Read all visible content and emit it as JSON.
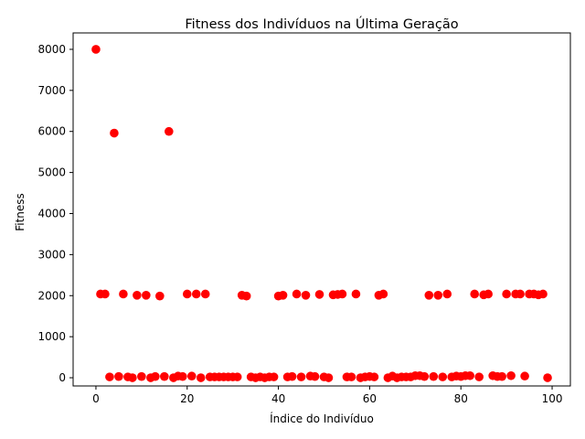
{
  "chart_data": {
    "type": "scatter",
    "title": "Fitness dos Indivíduos na Última Geração",
    "xlabel": "Índice do Indivíduo",
    "ylabel": "Fitness",
    "xlim": [
      -5,
      104
    ],
    "ylim": [
      -200,
      8400
    ],
    "xticks": [
      0,
      20,
      40,
      60,
      80,
      100
    ],
    "yticks": [
      0,
      1000,
      2000,
      3000,
      4000,
      5000,
      6000,
      7000,
      8000
    ],
    "grid": false,
    "color": "#ff0000",
    "x": [
      0,
      1,
      2,
      3,
      4,
      5,
      6,
      7,
      8,
      9,
      10,
      11,
      12,
      13,
      14,
      15,
      16,
      17,
      18,
      19,
      20,
      21,
      22,
      23,
      24,
      25,
      26,
      27,
      28,
      29,
      30,
      31,
      32,
      33,
      34,
      35,
      36,
      37,
      38,
      39,
      40,
      41,
      42,
      43,
      44,
      45,
      46,
      47,
      48,
      49,
      50,
      51,
      52,
      53,
      54,
      55,
      56,
      57,
      58,
      59,
      60,
      61,
      62,
      63,
      64,
      65,
      66,
      67,
      68,
      69,
      70,
      71,
      72,
      73,
      74,
      75,
      76,
      77,
      78,
      79,
      80,
      81,
      82,
      83,
      84,
      85,
      86,
      87,
      88,
      89,
      90,
      91,
      92,
      93,
      94,
      95,
      96,
      97,
      98,
      99
    ],
    "y": [
      8000,
      2040,
      2040,
      20,
      5960,
      30,
      2040,
      20,
      0,
      2010,
      30,
      2010,
      0,
      30,
      1990,
      30,
      6000,
      0,
      40,
      30,
      2040,
      40,
      2040,
      0,
      2040,
      20,
      20,
      20,
      20,
      20,
      20,
      20,
      2010,
      1990,
      20,
      0,
      20,
      0,
      20,
      20,
      1990,
      2010,
      20,
      30,
      2040,
      20,
      2010,
      40,
      30,
      2030,
      20,
      0,
      2020,
      2030,
      2040,
      20,
      20,
      2040,
      0,
      20,
      30,
      20,
      2010,
      2040,
      0,
      40,
      0,
      20,
      20,
      20,
      50,
      50,
      30,
      2010,
      30,
      2010,
      20,
      2040,
      20,
      40,
      30,
      50,
      50,
      2040,
      20,
      2020,
      2040,
      50,
      30,
      30,
      2040,
      50,
      2040,
      2040,
      40,
      2040,
      2040,
      2020,
      2040,
      0
    ]
  }
}
